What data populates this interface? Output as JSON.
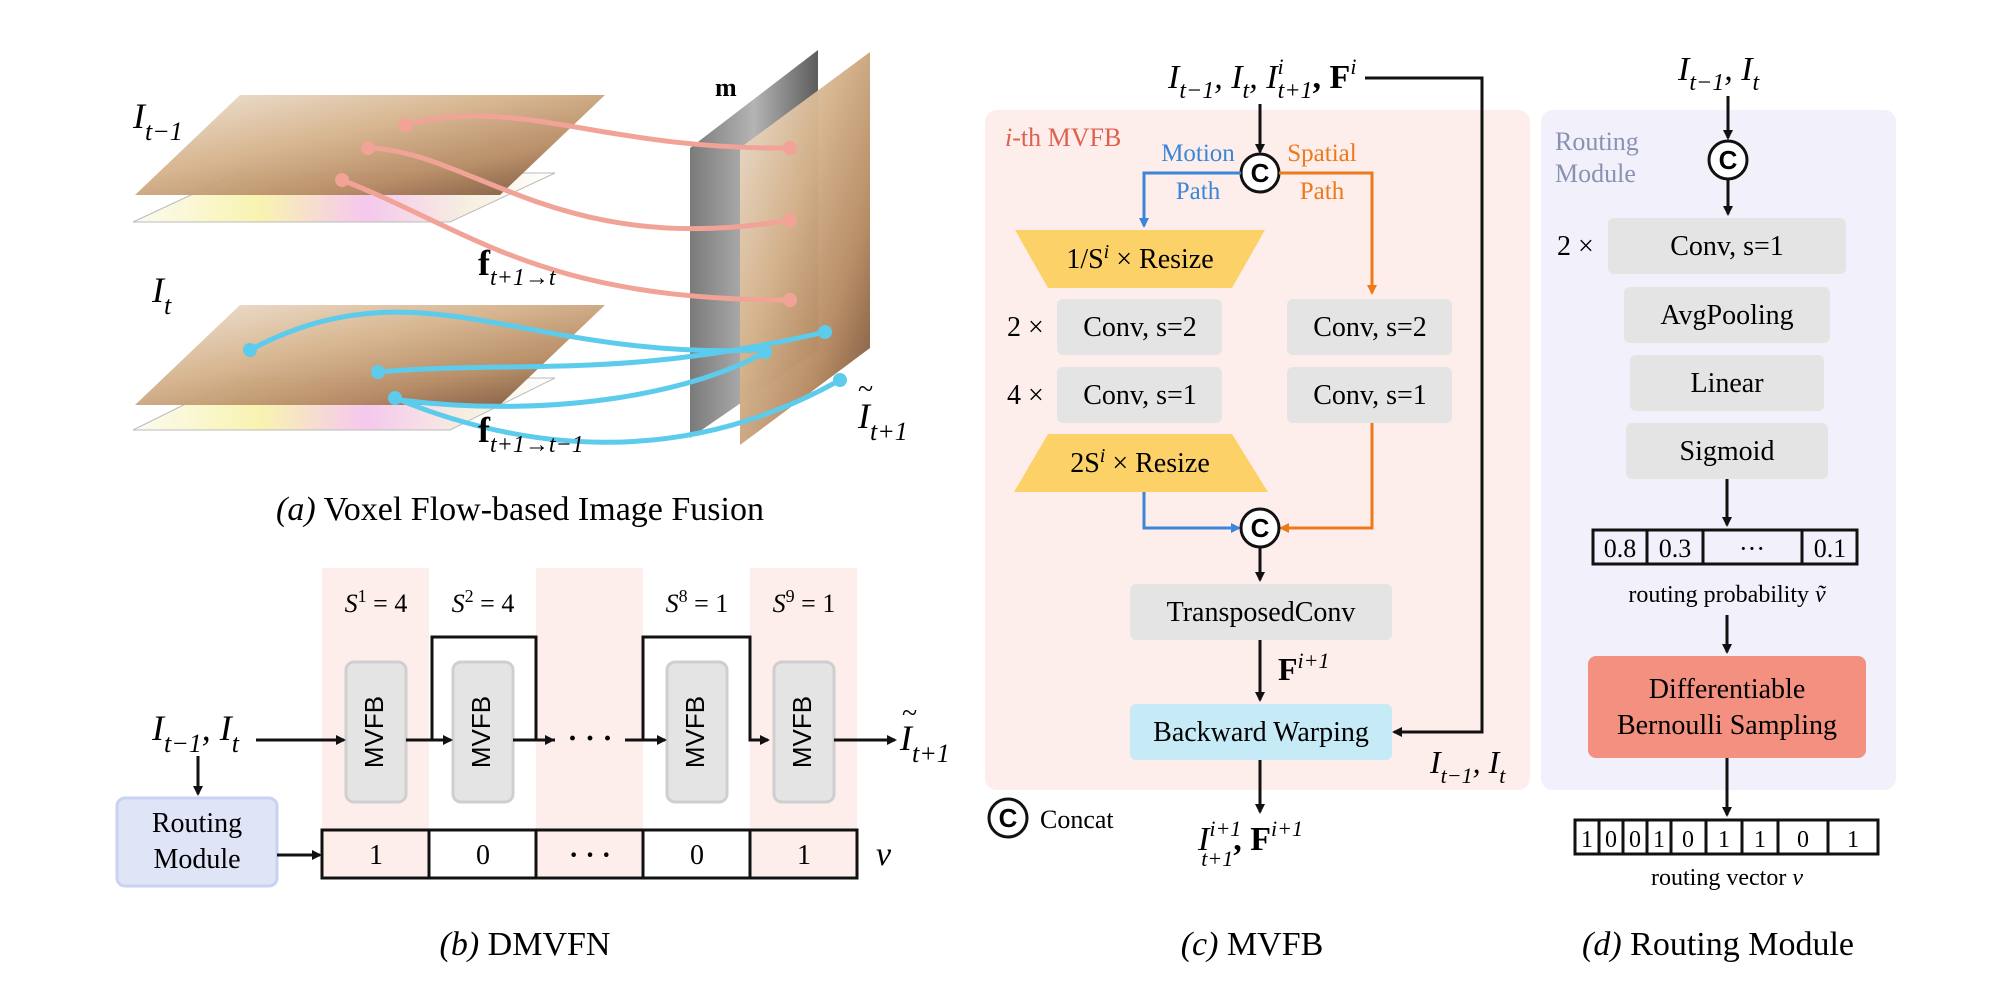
{
  "panel_a": {
    "caption_letter": "(a)",
    "caption_text": "Voxel Flow-based Image Fusion",
    "frame_prev": "I",
    "frame_prev_sub": "t−1",
    "frame_cur": "I",
    "frame_cur_sub": "t",
    "flow_1": "f",
    "flow_1_sub": "t+1→t",
    "flow_2": "f",
    "flow_2_sub": "t+1→t−1",
    "mask": "m",
    "output": "I",
    "output_sub": "t+1"
  },
  "panel_b": {
    "caption_letter": "(b)",
    "caption_text": "DMVFN",
    "input": "I",
    "input_sub1": "t−1",
    "input_sep": ", I",
    "input_sub2": "t",
    "scales": [
      {
        "s": "S",
        "sup": "1",
        "eq": " = 4"
      },
      {
        "s": "S",
        "sup": "2",
        "eq": " = 4"
      },
      {
        "s": "S",
        "sup": "8",
        "eq": " = 1"
      },
      {
        "s": "S",
        "sup": "9",
        "eq": " = 1"
      }
    ],
    "blocks": [
      "MVFB",
      "MVFB",
      "MVFB",
      "MVFB"
    ],
    "dots": "· · ·",
    "routing_module_line1": "Routing",
    "routing_module_line2": "Module",
    "vector_cells": [
      "1",
      "0",
      "· · ·",
      "0",
      "1"
    ],
    "vector_label": "v",
    "output": "I",
    "output_sub": "t+1"
  },
  "panel_c": {
    "caption_letter": "(c)",
    "caption_text": "MVFB",
    "title_prefix": "i",
    "title_suffix": "-th MVFB",
    "top_input_text": "I",
    "top_input_sub1": "t−1",
    "top_input_mid": ", I",
    "top_input_sub2": "t",
    "top_input_mid2": ", I",
    "top_input_sup3": "i",
    "top_input_sub3": "t+1",
    "top_input_F": ", F",
    "top_input_F_sup": "i",
    "motion_path": [
      "Motion",
      "Path"
    ],
    "spatial_path": [
      "Spatial",
      "Path"
    ],
    "concat_symbol": "C",
    "resize_down_prefix": "1/S",
    "resize_down_sup": "i",
    "resize_down_suffix": " × Resize",
    "left_mult_1": "2 ×",
    "left_conv_1": "Conv, s=2",
    "left_mult_2": "4 ×",
    "left_conv_2": "Conv, s=1",
    "resize_up_prefix": "2S",
    "resize_up_sup": "i",
    "resize_up_suffix": " × Resize",
    "right_conv_1": "Conv, s=2",
    "right_conv_2": "Conv, s=1",
    "transposed_conv": "TransposedConv",
    "f_next": "F",
    "f_next_sup": "i+1",
    "backward_warping": "Backward Warping",
    "side_input": "I",
    "side_input_sub1": "t−1",
    "side_input_mid": ", I",
    "side_input_sub2": "t",
    "concat_legend": "Concat",
    "output_I": "I",
    "output_I_sup": "i+1",
    "output_I_sub": "t+1",
    "output_F": ", F",
    "output_F_sup": "i+1"
  },
  "panel_d": {
    "caption_letter": "(d)",
    "caption_text": "Routing Module",
    "input": "I",
    "input_sub1": "t−1",
    "input_mid": ", I",
    "input_sub2": "t",
    "title_line1": "Routing",
    "title_line2": "Module",
    "concat_symbol": "C",
    "mult": "2 ×",
    "conv": "Conv, s=1",
    "avgpool": "AvgPooling",
    "linear": "Linear",
    "sigmoid": "Sigmoid",
    "prob_cells": [
      "0.8",
      "0.3",
      "···",
      "0.1"
    ],
    "prob_label": "routing probability",
    "prob_symbol": "ṽ",
    "sampling_line1": "Differentiable",
    "sampling_line2": "Bernoulli Sampling",
    "vector_cells": [
      "1",
      "0",
      "0",
      "1",
      "0",
      "1",
      "1",
      "0",
      "1"
    ],
    "vector_label": "routing vector",
    "vector_symbol": "v"
  },
  "colors": {
    "pink_panel": "#fdeeec",
    "lavender_panel": "#f1f0fb",
    "gray_box": "#e4e4e4",
    "yellow_box": "#fcd268",
    "blue_box": "#c6eaf6",
    "red_box": "#f4907f",
    "routing_box": "#dfe4f7",
    "motion_blue": "#3b86d6",
    "spatial_orange": "#ec7a1d",
    "pink_line": "#f1a397",
    "cyan_line": "#5ccbec",
    "title_red": "#e0604f",
    "title_gray": "#8a92b4"
  }
}
